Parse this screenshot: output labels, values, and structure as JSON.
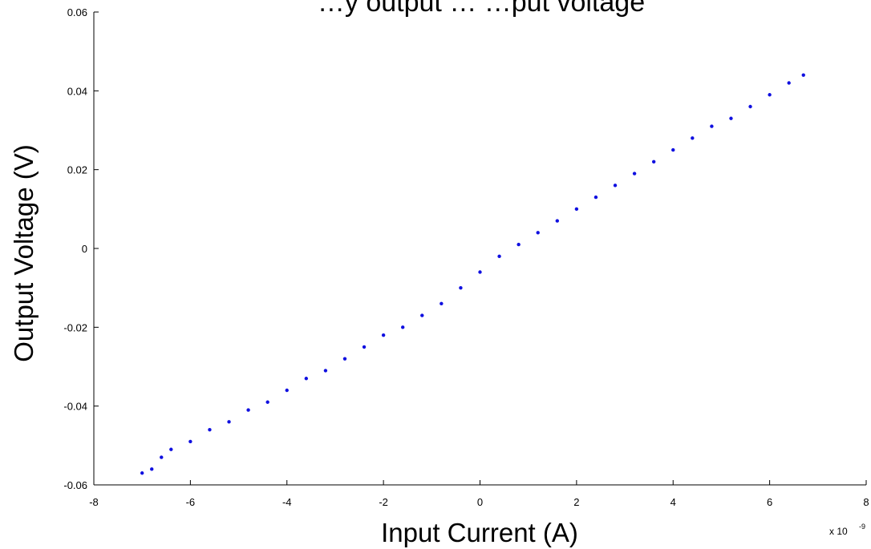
{
  "chart_data": {
    "type": "scatter",
    "title": "…y output … …put voltage",
    "xlabel": "Input Current (A)",
    "ylabel": "Output Voltage (V)",
    "x_multiplier_label": "x 10",
    "x_multiplier_exponent": "-9",
    "xlim": [
      -8,
      8
    ],
    "ylim": [
      -0.06,
      0.06
    ],
    "x_ticks": [
      -8,
      -6,
      -4,
      -2,
      0,
      2,
      4,
      6,
      8
    ],
    "x_tick_labels": [
      "-8",
      "-6",
      "-4",
      "-2",
      "0",
      "2",
      "4",
      "6",
      "8"
    ],
    "y_ticks": [
      -0.06,
      -0.04,
      -0.02,
      0,
      0.02,
      0.04,
      0.06
    ],
    "y_tick_labels": [
      "-0.06",
      "-0.04",
      "-0.02",
      "0",
      "0.02",
      "0.04",
      "0.06"
    ],
    "grid": false,
    "legend": "none",
    "marker_color": "#1010e0",
    "series": [
      {
        "points": [
          [
            -7.0,
            -0.057
          ],
          [
            -6.8,
            -0.056
          ],
          [
            -6.6,
            -0.053
          ],
          [
            -6.4,
            -0.051
          ],
          [
            -6.0,
            -0.049
          ],
          [
            -5.6,
            -0.046
          ],
          [
            -5.2,
            -0.044
          ],
          [
            -4.8,
            -0.041
          ],
          [
            -4.4,
            -0.039
          ],
          [
            -4.0,
            -0.036
          ],
          [
            -3.6,
            -0.033
          ],
          [
            -3.2,
            -0.031
          ],
          [
            -2.8,
            -0.028
          ],
          [
            -2.4,
            -0.025
          ],
          [
            -2.0,
            -0.022
          ],
          [
            -1.6,
            -0.02
          ],
          [
            -1.2,
            -0.017
          ],
          [
            -0.8,
            -0.014
          ],
          [
            -0.4,
            -0.01
          ],
          [
            0.0,
            -0.006
          ],
          [
            0.4,
            -0.002
          ],
          [
            0.8,
            0.001
          ],
          [
            1.2,
            0.004
          ],
          [
            1.6,
            0.007
          ],
          [
            2.0,
            0.01
          ],
          [
            2.4,
            0.013
          ],
          [
            2.8,
            0.016
          ],
          [
            3.2,
            0.019
          ],
          [
            3.6,
            0.022
          ],
          [
            4.0,
            0.025
          ],
          [
            4.4,
            0.028
          ],
          [
            4.8,
            0.031
          ],
          [
            5.2,
            0.033
          ],
          [
            5.6,
            0.036
          ],
          [
            6.0,
            0.039
          ],
          [
            6.4,
            0.042
          ],
          [
            6.7,
            0.044
          ]
        ]
      }
    ]
  }
}
